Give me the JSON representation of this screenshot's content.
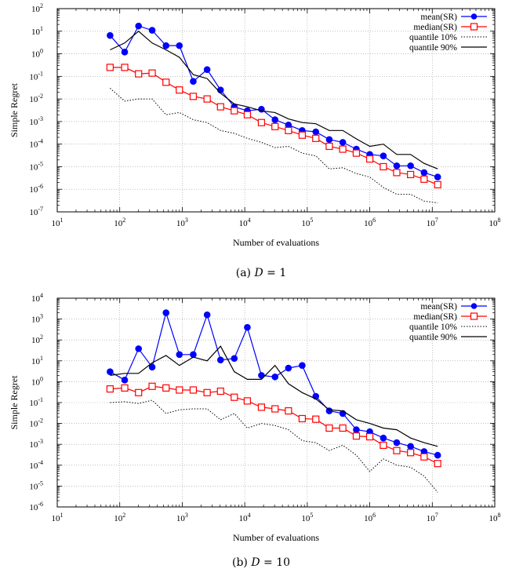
{
  "chart_data": [
    {
      "type": "line",
      "caption": "(a) D = 1",
      "caption_prefix": "(a) ",
      "caption_var": "D",
      "caption_rest": " = 1",
      "xlabel": "Number of evaluations",
      "ylabel": "Simple Regret",
      "xscale": "log",
      "yscale": "log",
      "xlim": [
        10,
        100000000
      ],
      "ylim": [
        1e-07,
        100
      ],
      "xtick_exps": [
        1,
        2,
        3,
        4,
        5,
        6,
        7,
        8
      ],
      "ytick_exps": [
        -7,
        -6,
        -5,
        -4,
        -3,
        -2,
        -1,
        0,
        1,
        2
      ],
      "grid": true,
      "legend_position": "top-right",
      "series": [
        {
          "name": "mean(SR)",
          "style": "blue-circle",
          "x": [
            70,
            120,
            200,
            330,
            550,
            900,
            1500,
            2500,
            4100,
            6800,
            11000,
            18500,
            30500,
            50000,
            83000,
            137000,
            225000,
            370000,
            610000,
            1000000,
            1650000,
            2700000,
            4500000,
            7400000,
            12200000
          ],
          "y": [
            6.5,
            1.2,
            17,
            11,
            2.3,
            2.3,
            0.06,
            0.2,
            0.025,
            0.0045,
            0.003,
            0.0035,
            0.0012,
            0.0007,
            0.0004,
            0.00035,
            0.00016,
            0.00012,
            6e-05,
            3.5e-05,
            3e-05,
            1.1e-05,
            1.1e-05,
            5.5e-06,
            3.5e-06
          ]
        },
        {
          "name": "median(SR)",
          "style": "red-square",
          "x": [
            70,
            120,
            200,
            330,
            550,
            900,
            1500,
            2500,
            4100,
            6800,
            11000,
            18500,
            30500,
            50000,
            83000,
            137000,
            225000,
            370000,
            610000,
            1000000,
            1650000,
            2700000,
            4500000,
            7400000,
            12200000
          ],
          "y": [
            0.25,
            0.25,
            0.13,
            0.14,
            0.055,
            0.025,
            0.013,
            0.01,
            0.0045,
            0.003,
            0.002,
            0.0009,
            0.0006,
            0.0004,
            0.00025,
            0.00018,
            8e-05,
            6e-05,
            4e-05,
            2.2e-05,
            1e-05,
            5.5e-06,
            4.5e-06,
            2.8e-06,
            1.6e-06
          ]
        },
        {
          "name": "quantile 10%",
          "style": "dotted",
          "x": [
            70,
            120,
            200,
            330,
            550,
            900,
            1500,
            2500,
            4100,
            6800,
            11000,
            18500,
            30500,
            50000,
            83000,
            137000,
            225000,
            370000,
            610000,
            1000000,
            1650000,
            2700000,
            4500000,
            7400000,
            12200000
          ],
          "y": [
            0.03,
            0.008,
            0.01,
            0.01,
            0.002,
            0.0025,
            0.0012,
            0.0009,
            0.0004,
            0.0003,
            0.00018,
            0.00012,
            7e-05,
            8e-05,
            4e-05,
            3e-05,
            8e-06,
            9e-06,
            5e-06,
            3.5e-06,
            1.2e-06,
            6e-07,
            6e-07,
            3e-07,
            2.5e-07
          ]
        },
        {
          "name": "quantile 90%",
          "style": "solid-black",
          "x": [
            70,
            120,
            200,
            330,
            550,
            900,
            1500,
            2500,
            4100,
            6800,
            11000,
            18500,
            30500,
            50000,
            83000,
            137000,
            225000,
            370000,
            610000,
            1000000,
            1650000,
            2700000,
            4500000,
            7400000,
            12200000
          ],
          "y": [
            1.5,
            3,
            10,
            3,
            1.5,
            0.7,
            0.12,
            0.08,
            0.018,
            0.006,
            0.0045,
            0.003,
            0.0025,
            0.0013,
            0.0009,
            0.0008,
            0.0004,
            0.0004,
            0.00017,
            8e-05,
            0.0001,
            3.5e-05,
            3.5e-05,
            1.4e-05,
            8e-06
          ]
        }
      ]
    },
    {
      "type": "line",
      "caption": "(b) D = 10",
      "caption_prefix": "(b) ",
      "caption_var": "D",
      "caption_rest": " = 10",
      "xlabel": "Number of evaluations",
      "ylabel": "Simple Regret",
      "xscale": "log",
      "yscale": "log",
      "xlim": [
        10,
        100000000
      ],
      "ylim": [
        1e-06,
        10000
      ],
      "xtick_exps": [
        1,
        2,
        3,
        4,
        5,
        6,
        7,
        8
      ],
      "ytick_exps": [
        -6,
        -5,
        -4,
        -3,
        -2,
        -1,
        0,
        1,
        2,
        3,
        4
      ],
      "grid": true,
      "legend_position": "top-right",
      "series": [
        {
          "name": "mean(SR)",
          "style": "blue-circle",
          "x": [
            70,
            120,
            200,
            330,
            550,
            900,
            1500,
            2500,
            4100,
            6800,
            11000,
            18500,
            30500,
            50000,
            83000,
            137000,
            225000,
            370000,
            610000,
            1000000,
            1650000,
            2700000,
            4500000,
            7400000,
            12200000
          ],
          "y": [
            3,
            1.2,
            38,
            5,
            2000,
            20,
            20,
            1600,
            11,
            13,
            400,
            2,
            1.7,
            4.5,
            6,
            0.2,
            0.04,
            0.03,
            0.005,
            0.004,
            0.002,
            0.0012,
            0.0008,
            0.00045,
            0.0003
          ]
        },
        {
          "name": "median(SR)",
          "style": "red-square",
          "x": [
            70,
            120,
            200,
            330,
            550,
            900,
            1500,
            2500,
            4100,
            6800,
            11000,
            18500,
            30500,
            50000,
            83000,
            137000,
            225000,
            370000,
            610000,
            1000000,
            1650000,
            2700000,
            4500000,
            7400000,
            12200000
          ],
          "y": [
            0.45,
            0.5,
            0.3,
            0.6,
            0.5,
            0.4,
            0.4,
            0.3,
            0.35,
            0.18,
            0.12,
            0.06,
            0.05,
            0.04,
            0.017,
            0.016,
            0.006,
            0.006,
            0.0025,
            0.0023,
            0.0009,
            0.0005,
            0.0004,
            0.00025,
            0.00012
          ]
        },
        {
          "name": "quantile 10%",
          "style": "dotted",
          "x": [
            70,
            120,
            200,
            330,
            550,
            900,
            1500,
            2500,
            4100,
            6800,
            11000,
            18500,
            30500,
            50000,
            83000,
            137000,
            225000,
            370000,
            610000,
            1000000,
            1650000,
            2700000,
            4500000,
            7400000,
            12200000
          ],
          "y": [
            0.1,
            0.11,
            0.09,
            0.13,
            0.03,
            0.045,
            0.05,
            0.05,
            0.015,
            0.03,
            0.006,
            0.01,
            0.008,
            0.005,
            0.0015,
            0.0012,
            0.0005,
            0.0009,
            0.0003,
            5e-05,
            0.0002,
            0.0001,
            8e-05,
            3e-05,
            5e-06
          ]
        },
        {
          "name": "quantile 90%",
          "style": "solid-black",
          "x": [
            70,
            120,
            200,
            330,
            550,
            900,
            1500,
            2500,
            4100,
            6800,
            11000,
            18500,
            30500,
            50000,
            83000,
            137000,
            225000,
            370000,
            610000,
            1000000,
            1650000,
            2700000,
            4500000,
            7400000,
            12200000
          ],
          "y": [
            2,
            2.5,
            2.5,
            8,
            18,
            6,
            15,
            10,
            50,
            3,
            1.3,
            1.3,
            6,
            0.8,
            0.3,
            0.15,
            0.045,
            0.04,
            0.015,
            0.01,
            0.006,
            0.005,
            0.002,
            0.0012,
            0.0008
          ]
        }
      ]
    }
  ]
}
